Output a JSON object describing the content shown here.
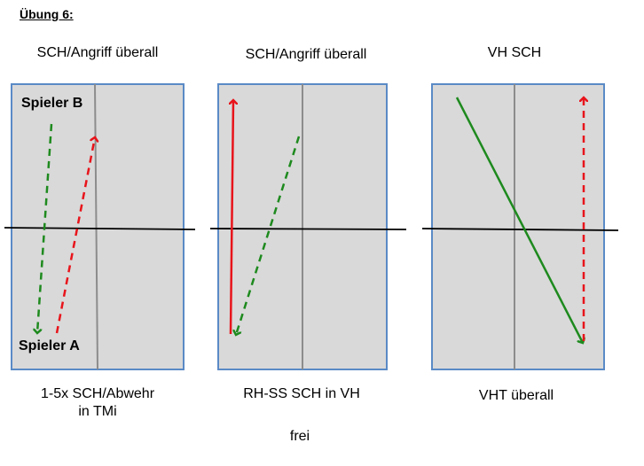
{
  "title": "Übung 6:",
  "colors": {
    "table_fill": "#d9d9d9",
    "table_border": "#5a8ac6",
    "center_line": "#8c8c8c",
    "net": "#000000",
    "red_arrow": "#e8141b",
    "green_arrow": "#1e8a1e"
  },
  "panels": [
    {
      "top_label": "SCH/Angriff überall",
      "bottom_label_line1": "1-5x SCH/Abwehr",
      "bottom_label_line2": "in TMi",
      "player_b": "Spieler B",
      "player_a": "Spieler A"
    },
    {
      "top_label": "SCH/Angriff überall",
      "bottom_label_line1": "RH-SS SCH in VH"
    },
    {
      "top_label": "VH SCH",
      "bottom_label_line1": "VHT überall"
    }
  ],
  "footer": "frei"
}
